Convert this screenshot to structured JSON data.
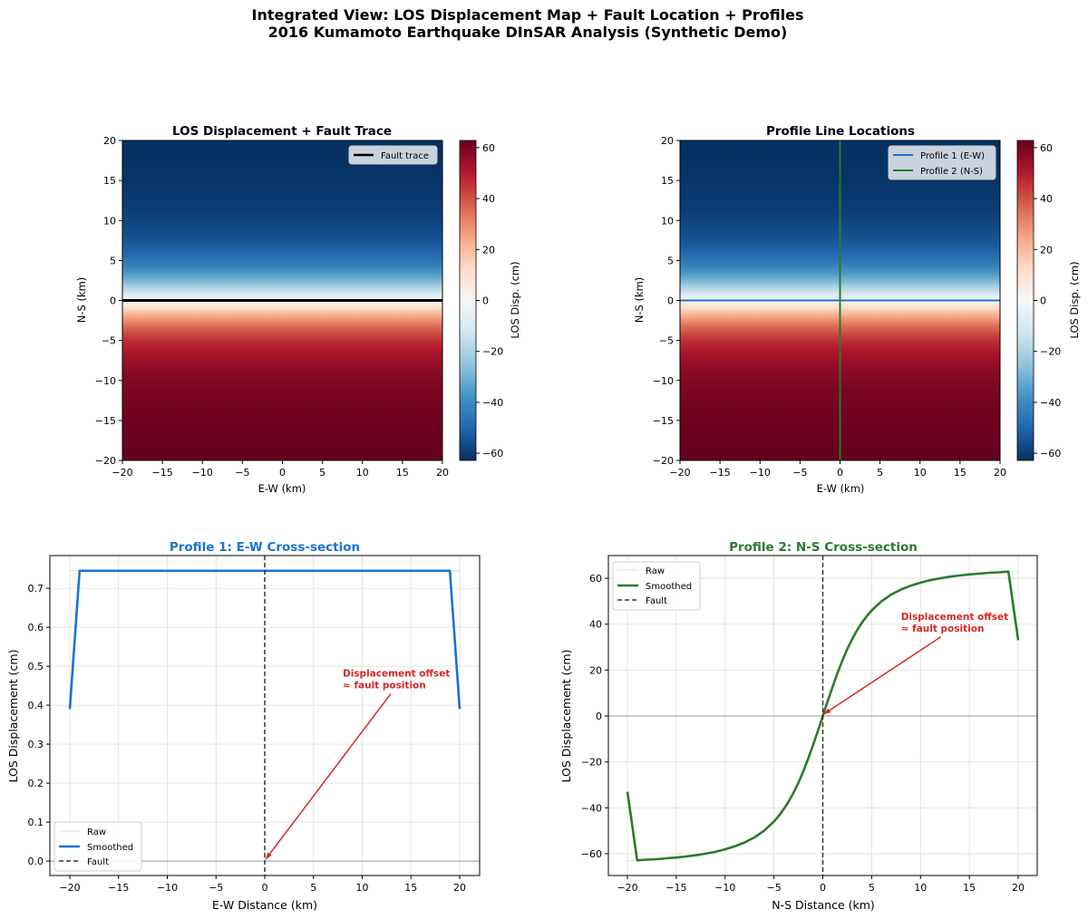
{
  "suptitle": {
    "line1": "Integrated View: LOS Displacement Map + Fault Location + Profiles",
    "line2": "2016 Kumamoto Earthquake DInSAR Analysis (Synthetic Demo)"
  },
  "colors": {
    "profile1": "#1874d2",
    "profile2": "#2a7a2e",
    "annotation": "#d62728",
    "fault": "#333333",
    "fault_trace": "#000000"
  },
  "chart_data": [
    {
      "type": "heatmap",
      "title": "LOS Displacement + Fault Trace",
      "xlabel": "E-W (km)",
      "ylabel": "N-S (km)",
      "xlim": [
        -20,
        20
      ],
      "ylim": [
        -20,
        20
      ],
      "xticks": [
        -20,
        -15,
        -10,
        -5,
        0,
        5,
        10,
        15,
        20
      ],
      "yticks": [
        -20,
        -15,
        -10,
        -5,
        0,
        5,
        10,
        15,
        20
      ],
      "colormap": "RdBu_r",
      "colorbar": {
        "label": "LOS Disp. (cm)",
        "range": [
          -62.8,
          62.8
        ],
        "ticks": [
          -60,
          -40,
          -20,
          0,
          20,
          40,
          60
        ]
      },
      "field": {
        "varies_along": "N-S",
        "ns_km": [
          20,
          19,
          18,
          17,
          16,
          15,
          14,
          13,
          12,
          11,
          10,
          9,
          8,
          7,
          6,
          5,
          4,
          3,
          2,
          1,
          0,
          -1,
          -2,
          -3,
          -4,
          -5,
          -6,
          -7,
          -8,
          -9,
          -10,
          -11,
          -12,
          -13,
          -14,
          -15,
          -16,
          -17,
          -18,
          -19,
          -20
        ],
        "los_cm": [
          -63.1,
          -62.9,
          -62.6,
          -62.4,
          -62.0,
          -61.7,
          -61.2,
          -60.7,
          -60.0,
          -59.2,
          -58.1,
          -56.8,
          -55.1,
          -52.9,
          -49.9,
          -46.0,
          -40.6,
          -33.4,
          -24.1,
          -12.7,
          0,
          12.7,
          24.1,
          33.4,
          40.6,
          46.0,
          49.9,
          52.9,
          55.1,
          56.8,
          58.1,
          59.2,
          60.0,
          60.7,
          61.2,
          61.7,
          62.0,
          62.4,
          62.6,
          62.9,
          63.1
        ]
      },
      "overlays": [
        {
          "name": "Fault trace",
          "orientation": "horizontal",
          "at_km": 0,
          "color": "#000000"
        }
      ],
      "legend": "upper right"
    },
    {
      "type": "heatmap",
      "title": "Profile Line Locations",
      "xlabel": "E-W (km)",
      "ylabel": "N-S (km)",
      "xlim": [
        -20,
        20
      ],
      "ylim": [
        -20,
        20
      ],
      "xticks": [
        -20,
        -15,
        -10,
        -5,
        0,
        5,
        10,
        15,
        20
      ],
      "yticks": [
        -20,
        -15,
        -10,
        -5,
        0,
        5,
        10,
        15,
        20
      ],
      "colormap": "RdBu_r",
      "colorbar": {
        "label": "LOS Disp. (cm)",
        "range": [
          -62.8,
          62.8
        ],
        "ticks": [
          -60,
          -40,
          -20,
          0,
          20,
          40,
          60
        ]
      },
      "field": {
        "varies_along": "N-S",
        "ns_km": [
          20,
          19,
          18,
          17,
          16,
          15,
          14,
          13,
          12,
          11,
          10,
          9,
          8,
          7,
          6,
          5,
          4,
          3,
          2,
          1,
          0,
          -1,
          -2,
          -3,
          -4,
          -5,
          -6,
          -7,
          -8,
          -9,
          -10,
          -11,
          -12,
          -13,
          -14,
          -15,
          -16,
          -17,
          -18,
          -19,
          -20
        ],
        "los_cm": [
          -63.1,
          -62.9,
          -62.6,
          -62.4,
          -62.0,
          -61.7,
          -61.2,
          -60.7,
          -60.0,
          -59.2,
          -58.1,
          -56.8,
          -55.1,
          -52.9,
          -49.9,
          -46.0,
          -40.6,
          -33.4,
          -24.1,
          -12.7,
          0,
          12.7,
          24.1,
          33.4,
          40.6,
          46.0,
          49.9,
          52.9,
          55.1,
          56.8,
          58.1,
          59.2,
          60.0,
          60.7,
          61.2,
          61.7,
          62.0,
          62.4,
          62.6,
          62.9,
          63.1
        ]
      },
      "overlays": [
        {
          "name": "Profile 1 (E-W)",
          "orientation": "horizontal",
          "at_km": 0,
          "color": "#1874d2"
        },
        {
          "name": "Profile 2 (N-S)",
          "orientation": "vertical",
          "at_km": 0,
          "color": "#2a7a2e"
        }
      ],
      "legend": "upper right"
    },
    {
      "type": "line",
      "title": "Profile 1: E-W Cross-section",
      "xlabel": "E-W Distance (km)",
      "ylabel": "LOS Displacement (cm)",
      "xlim": [
        -22.05,
        22.05
      ],
      "ylim": [
        -0.037,
        0.784
      ],
      "xticks": [
        -20,
        -15,
        -10,
        -5,
        0,
        5,
        10,
        15,
        20
      ],
      "yticks": [
        0.0,
        0.1,
        0.2,
        0.3,
        0.4,
        0.5,
        0.6,
        0.7
      ],
      "ytick_decimals": 1,
      "grid": true,
      "series": [
        {
          "name": "Raw",
          "x": [
            -20,
            20
          ],
          "values": [
            0.745,
            0.745
          ],
          "style": "thin-faint"
        },
        {
          "name": "Smoothed",
          "x": [
            -20,
            -19,
            19,
            20
          ],
          "values": [
            0.39,
            0.745,
            0.745,
            0.39
          ],
          "style": "thick"
        }
      ],
      "fault": {
        "name": "Fault",
        "x": 0
      },
      "zero_line": true,
      "annotation": {
        "line1": "Displacement offset",
        "line2": "≈ fault position",
        "xytext": [
          8,
          0.45
        ],
        "xy": [
          0,
          0
        ]
      },
      "legend": "lower left"
    },
    {
      "type": "line",
      "title": "Profile 2: N-S Cross-section",
      "xlabel": "N-S Distance (km)",
      "ylabel": "LOS Displacement (cm)",
      "xlim": [
        -21.95,
        21.95
      ],
      "ylim": [
        -69.5,
        69.9
      ],
      "xticks": [
        -20,
        -15,
        -10,
        -5,
        0,
        5,
        10,
        15,
        20
      ],
      "yticks": [
        -60,
        -40,
        -20,
        0,
        20,
        40,
        60
      ],
      "ytick_decimals": 0,
      "grid": true,
      "series": [
        {
          "name": "Raw",
          "x": [
            -20,
            -19,
            -18,
            -17,
            -16,
            -15,
            -14,
            -13,
            -12,
            -11,
            -10,
            -9,
            -8,
            -7,
            -6,
            -5,
            -4.5,
            -4,
            -3.5,
            -3,
            -2.5,
            -2,
            -1.5,
            -1,
            -0.5,
            0,
            0.5,
            1,
            1.5,
            2,
            2.5,
            3,
            3.5,
            4,
            4.5,
            5,
            6,
            7,
            8,
            9,
            10,
            11,
            12,
            13,
            14,
            15,
            16,
            17,
            18,
            19,
            20
          ],
          "values": [
            -63.1,
            -62.9,
            -62.6,
            -62.4,
            -62.0,
            -61.7,
            -61.2,
            -60.7,
            -60.0,
            -59.2,
            -58.1,
            -56.8,
            -55.1,
            -52.9,
            -49.9,
            -46.0,
            -43.5,
            -40.6,
            -37.3,
            -33.4,
            -29.1,
            -24.1,
            -18.7,
            -12.7,
            -6.5,
            0,
            6.5,
            12.7,
            18.7,
            24.1,
            29.1,
            33.4,
            37.3,
            40.6,
            43.5,
            46.0,
            49.9,
            52.9,
            55.1,
            56.8,
            58.1,
            59.2,
            60.0,
            60.7,
            61.2,
            61.7,
            62.0,
            62.4,
            62.6,
            62.9,
            63.1
          ],
          "style": "thin-faint"
        },
        {
          "name": "Smoothed",
          "x": [
            -20,
            -19,
            -18,
            -17,
            -16,
            -15,
            -14,
            -13,
            -12,
            -11,
            -10,
            -9,
            -8,
            -7,
            -6,
            -5,
            -4.5,
            -4,
            -3.5,
            -3,
            -2.5,
            -2,
            -1.5,
            -1,
            -0.5,
            0,
            0.5,
            1,
            1.5,
            2,
            2.5,
            3,
            3.5,
            4,
            4.5,
            5,
            6,
            7,
            8,
            9,
            10,
            11,
            12,
            13,
            14,
            15,
            16,
            17,
            18,
            19,
            20
          ],
          "values": [
            -33.0,
            -62.9,
            -62.6,
            -62.4,
            -62.0,
            -61.7,
            -61.2,
            -60.7,
            -60.0,
            -59.2,
            -58.1,
            -56.8,
            -55.1,
            -52.9,
            -49.9,
            -46.0,
            -43.5,
            -40.6,
            -37.3,
            -33.4,
            -29.1,
            -24.1,
            -18.7,
            -12.7,
            -6.5,
            0,
            6.5,
            12.7,
            18.7,
            24.1,
            29.1,
            33.4,
            37.3,
            40.6,
            43.5,
            46.0,
            49.9,
            52.9,
            55.1,
            56.8,
            58.1,
            59.2,
            60.0,
            60.7,
            61.2,
            61.7,
            62.0,
            62.4,
            62.6,
            62.9,
            33.0
          ],
          "style": "thick"
        }
      ],
      "fault": {
        "name": "Fault",
        "x": 0
      },
      "zero_line": true,
      "annotation": {
        "line1": "Displacement offset",
        "line2": "≈ fault position",
        "xytext": [
          8,
          38
        ],
        "xy": [
          0,
          0
        ]
      },
      "legend": "upper left"
    }
  ]
}
